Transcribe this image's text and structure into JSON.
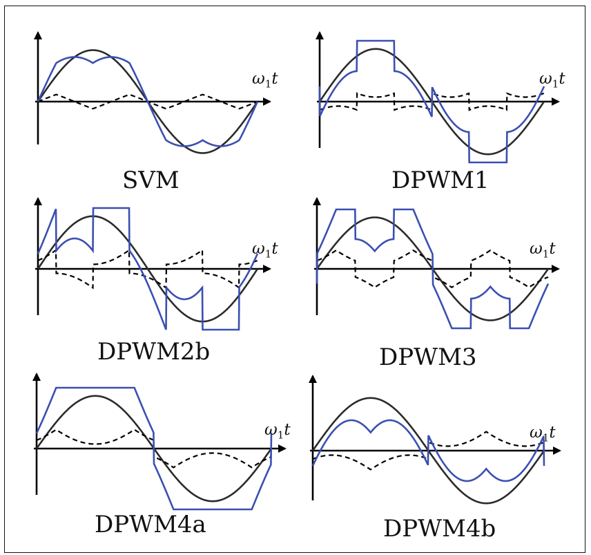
{
  "colors": {
    "modulation": "#3a4fb2",
    "sine": "#2b2b2b",
    "zero_sequence": "#000000",
    "axis": "#000000"
  },
  "axis_label": {
    "symbol": "ω",
    "subscript": "1",
    "variable": "t"
  },
  "panels": [
    {
      "id": "svm",
      "caption": "SVM"
    },
    {
      "id": "dpwm1",
      "caption": "DPWM1"
    },
    {
      "id": "dpwm2b",
      "caption": "DPWM2b"
    },
    {
      "id": "dpwm3",
      "caption": "DPWM3"
    },
    {
      "id": "dpwm4a",
      "caption": "DPWM4a"
    },
    {
      "id": "dpwm4b",
      "caption": "DPWM4b"
    }
  ]
}
